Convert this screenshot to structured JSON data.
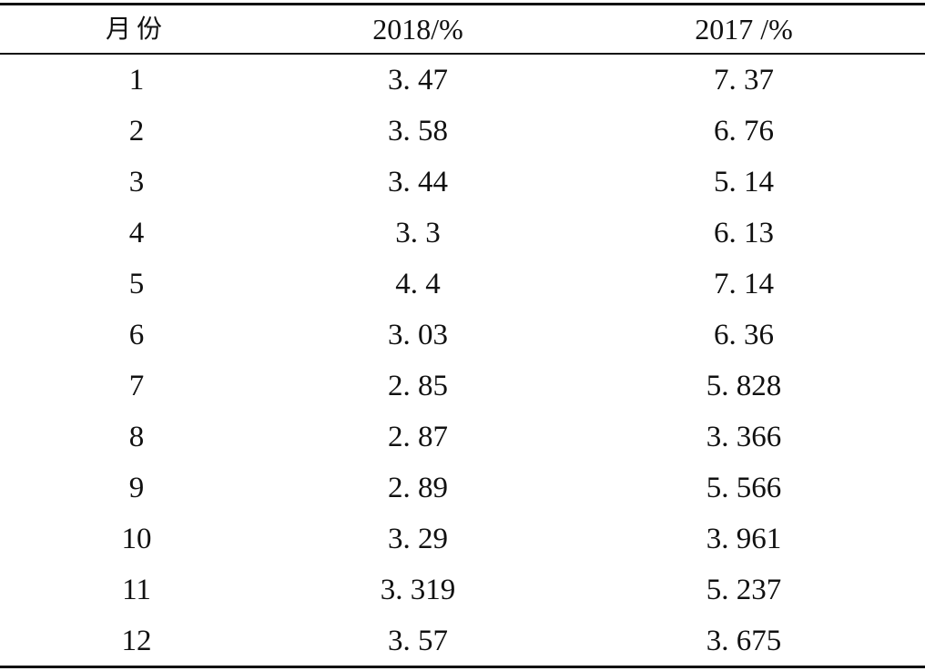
{
  "table": {
    "headers": [
      "月份",
      "2018/%",
      "2017 /%"
    ],
    "rows": [
      [
        "1",
        "3. 47",
        "7. 37"
      ],
      [
        "2",
        "3. 58",
        "6. 76"
      ],
      [
        "3",
        "3. 44",
        "5. 14"
      ],
      [
        "4",
        "3. 3",
        "6. 13"
      ],
      [
        "5",
        "4. 4",
        "7. 14"
      ],
      [
        "6",
        "3. 03",
        "6. 36"
      ],
      [
        "7",
        "2. 85",
        "5. 828"
      ],
      [
        "8",
        "2. 87",
        "3. 366"
      ],
      [
        "9",
        "2. 89",
        "5. 566"
      ],
      [
        "10",
        "3. 29",
        "3. 961"
      ],
      [
        "11",
        "3. 319",
        "5. 237"
      ],
      [
        "12",
        "3. 57",
        "3. 675"
      ]
    ]
  }
}
